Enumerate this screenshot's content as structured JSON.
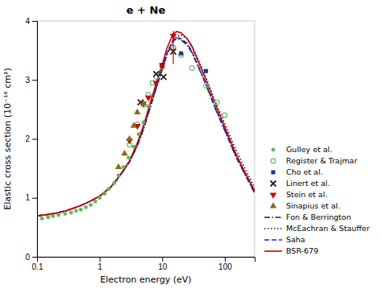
{
  "chart_data": {
    "type": "line",
    "title": "e + Ne",
    "x_label": "Electron energy (eV)",
    "y_label": "Elastic cross section (10⁻¹⁶ cm²)",
    "log": "x",
    "grid": false,
    "legend": "lower right",
    "xlim": [
      0.1,
      300
    ],
    "ylim": [
      0,
      4
    ],
    "xticks": [
      0.1,
      1,
      10,
      100
    ],
    "yticks": [
      0,
      1,
      2,
      3,
      4
    ],
    "series": [
      {
        "name": "Gulley et al.",
        "type": "scatter",
        "marker": "circle",
        "color": "#5cb85c",
        "x": [
          0.12,
          0.15,
          0.18,
          0.22,
          0.28,
          0.35,
          0.42,
          0.5,
          0.6,
          0.72,
          0.85,
          1.0,
          1.2,
          1.4,
          1.7,
          2.0,
          2.4,
          2.9,
          3.5,
          4.2,
          5.0,
          6.0
        ],
        "values": [
          0.65,
          0.67,
          0.69,
          0.71,
          0.73,
          0.75,
          0.78,
          0.8,
          0.84,
          0.88,
          0.94,
          1.0,
          1.07,
          1.15,
          1.25,
          1.38,
          1.52,
          1.68,
          1.87,
          2.08,
          2.28,
          2.55
        ]
      },
      {
        "name": "Register & Trajmar",
        "type": "scatter",
        "marker": "circle-open",
        "color": "#5cb85c",
        "x": [
          3.0,
          4.0,
          5.0,
          6.0,
          7.0,
          8.0,
          10.0,
          15.0,
          20.0,
          30.0,
          50.0,
          75.0,
          100.0
        ],
        "values": [
          1.9,
          2.25,
          2.58,
          2.75,
          2.95,
          3.05,
          3.22,
          3.55,
          3.42,
          3.2,
          2.9,
          2.62,
          2.4
        ]
      },
      {
        "name": "Cho et al.",
        "type": "scatter",
        "marker": "square",
        "color": "#1a3a8a",
        "x": [
          10.0,
          10.0,
          20.0,
          50.0
        ],
        "values": [
          3.25,
          3.25,
          3.45,
          3.15
        ]
      },
      {
        "name": "Linert et al.",
        "type": "scatter",
        "marker": "x",
        "color": "#222222",
        "x": [
          4.5,
          8.0,
          10.5,
          15.0
        ],
        "values": [
          2.62,
          3.1,
          3.05,
          3.48
        ]
      },
      {
        "name": "Stein et al.",
        "type": "scatter",
        "marker": "triangle-down",
        "color": "#cc0000",
        "x": [
          3.0,
          4.0,
          5.0,
          6.0,
          8.0,
          10.0,
          15.0
        ],
        "values": [
          1.97,
          2.22,
          2.6,
          2.7,
          2.95,
          3.25,
          3.75
        ]
      },
      {
        "name": "Sinapius et al.",
        "type": "scatter",
        "marker": "triangle-up",
        "color": "#8B6914",
        "x": [
          2.0,
          2.5,
          3.0,
          3.5,
          4.0,
          5.0
        ],
        "values": [
          1.52,
          1.75,
          2.0,
          2.22,
          2.45,
          2.6
        ]
      },
      {
        "name": "Fon & Berrington",
        "type": "line",
        "line_style": "dashdot",
        "color": "#222222",
        "x": [
          0.1,
          0.15,
          0.2,
          0.3,
          0.5,
          0.7,
          1.0,
          1.5,
          2.0,
          3.0,
          4.0,
          5.0,
          6.0,
          7.0,
          8.0,
          9.0,
          10.0,
          12.0,
          15.0,
          17.0,
          20.0,
          25.0,
          30.0,
          40.0,
          50.0,
          70.0,
          100.0,
          150.0,
          200.0,
          300.0
        ],
        "values": [
          0.695,
          0.718,
          0.74,
          0.785,
          0.87,
          0.94,
          1.03,
          1.18,
          1.34,
          1.61,
          1.88,
          2.16,
          2.43,
          2.66,
          2.86,
          3.03,
          3.18,
          3.44,
          3.66,
          3.7,
          3.68,
          3.59,
          3.46,
          3.16,
          2.92,
          2.52,
          2.14,
          1.7,
          1.44,
          1.08
        ]
      },
      {
        "name": "McEachran & Stauffer",
        "type": "line",
        "line_style": "dotted",
        "color": "#222222",
        "x": [
          0.1,
          0.15,
          0.2,
          0.3,
          0.5,
          0.7,
          1.0,
          1.5,
          2.0,
          3.0,
          4.0,
          5.0,
          6.0,
          7.0,
          8.0,
          9.0,
          10.0,
          12.0,
          15.0,
          17.0,
          20.0,
          25.0,
          30.0,
          40.0,
          50.0,
          70.0,
          100.0,
          150.0,
          200.0,
          300.0
        ],
        "values": [
          0.695,
          0.718,
          0.74,
          0.785,
          0.87,
          0.94,
          1.03,
          1.18,
          1.34,
          1.61,
          1.88,
          2.16,
          2.43,
          2.66,
          2.86,
          3.03,
          3.18,
          3.44,
          3.68,
          3.74,
          3.76,
          3.7,
          3.58,
          3.28,
          3.04,
          2.64,
          2.26,
          1.82,
          1.55,
          1.17
        ]
      },
      {
        "name": "Saha",
        "type": "line",
        "line_style": "dashed",
        "color": "#2222cc",
        "x": [
          0.1,
          0.15,
          0.2,
          0.3,
          0.5,
          0.7,
          1.0,
          1.5,
          2.0,
          3.0,
          4.0,
          5.0,
          6.0,
          7.0,
          8.0,
          9.0,
          10.0,
          12.0,
          15.0,
          17.0,
          20.0,
          25.0,
          30.0,
          40.0,
          50.0,
          70.0,
          100.0,
          150.0,
          200.0,
          300.0
        ],
        "values": [
          0.695,
          0.718,
          0.74,
          0.785,
          0.87,
          0.94,
          1.03,
          1.18,
          1.34,
          1.61,
          1.9,
          2.18,
          2.45,
          2.68,
          2.88,
          3.05,
          3.2,
          3.47,
          3.68,
          3.72,
          3.7,
          3.62,
          3.48,
          3.17,
          2.93,
          2.53,
          2.15,
          1.71,
          1.45,
          1.09
        ]
      },
      {
        "name": "BSR-679",
        "type": "line",
        "line_style": "solid",
        "color": "#cc0000",
        "x": [
          0.1,
          0.15,
          0.2,
          0.3,
          0.5,
          0.7,
          1.0,
          1.5,
          2.0,
          3.0,
          4.0,
          5.0,
          6.0,
          7.0,
          8.0,
          9.0,
          10.0,
          12.0,
          15.0,
          17.0,
          20.0,
          25.0,
          30.0,
          40.0,
          50.0,
          70.0,
          100.0,
          150.0,
          200.0,
          300.0
        ],
        "values": [
          0.695,
          0.718,
          0.74,
          0.785,
          0.87,
          0.94,
          1.03,
          1.18,
          1.35,
          1.63,
          1.93,
          2.22,
          2.5,
          2.74,
          2.94,
          3.12,
          3.26,
          3.55,
          3.78,
          3.82,
          3.8,
          3.7,
          3.56,
          3.25,
          3.0,
          2.6,
          2.2,
          1.75,
          1.48,
          1.12
        ]
      },
      {
        "type": "errorbar",
        "color": "#cc0000",
        "x": [
          15.0
        ],
        "values": [
          3.55
        ],
        "errors": [
          0.28
        ]
      }
    ]
  }
}
